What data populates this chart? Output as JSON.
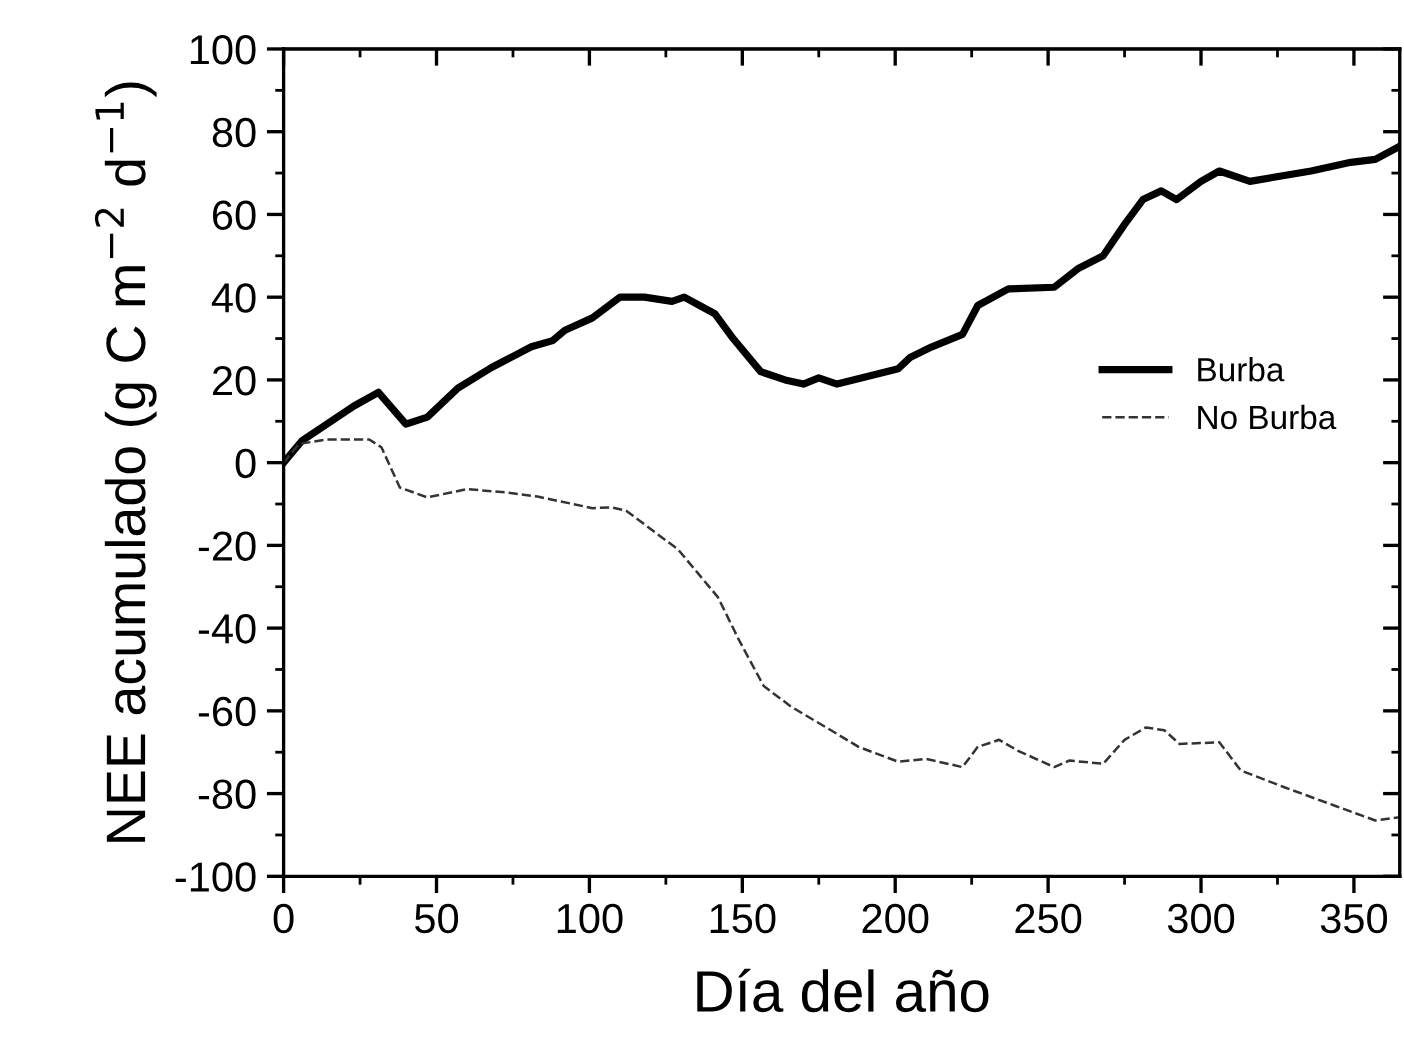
{
  "chart_data": {
    "type": "line",
    "xlabel": "Día del año",
    "ylabel": "NEE acumulado (g C m$^{−2}$ d$^{−1}$)",
    "xlim": [
      0,
      365
    ],
    "xticks": [
      0,
      50,
      100,
      150,
      200,
      250,
      300,
      350
    ],
    "ylim": [
      -100,
      100
    ],
    "yticks": [
      -100,
      -80,
      -60,
      -40,
      -20,
      0,
      20,
      40,
      60,
      80,
      100
    ],
    "grid": false,
    "legend": "right",
    "series": [
      {
        "name": "Burba",
        "color": "#000000",
        "line_style": "solid",
        "x": [
          0,
          6,
          23,
          31,
          40,
          47,
          57,
          68,
          81,
          88,
          92,
          101,
          110,
          118,
          127,
          131,
          141,
          147,
          156,
          164,
          170,
          175,
          181,
          201,
          205,
          212,
          222,
          227,
          237,
          252,
          260,
          268,
          275,
          281,
          287,
          292,
          300,
          306,
          316,
          336,
          349,
          357,
          365
        ],
        "values": [
          0,
          5.3,
          13.7,
          17,
          9.3,
          11,
          18,
          23,
          28,
          29.5,
          32,
          35,
          40,
          40,
          39,
          40,
          36,
          30,
          22,
          20,
          19,
          20.5,
          19,
          22.7,
          25.5,
          28,
          31,
          38,
          42,
          42.4,
          47,
          50,
          57.6,
          63.6,
          65.7,
          63.6,
          68,
          70.5,
          68,
          70.5,
          72.6,
          73.3,
          76.5
        ]
      },
      {
        "name": "No Burba",
        "color": "#333333",
        "line_style": "dashed",
        "x": [
          0,
          5,
          14,
          28,
          32,
          38,
          47,
          60,
          73,
          83,
          101,
          107,
          112,
          129,
          142,
          149,
          157,
          166,
          179,
          188,
          201,
          210,
          222,
          227,
          234,
          240,
          252,
          257,
          268,
          275,
          282,
          288,
          293,
          306,
          313,
          327,
          344,
          357,
          365
        ],
        "values": [
          0,
          4.5,
          5.6,
          5.6,
          3.7,
          -6,
          -8.4,
          -6.4,
          -7.2,
          -8.2,
          -11,
          -10.8,
          -11.6,
          -21,
          -32.5,
          -43,
          -54,
          -59,
          -64.7,
          -68.7,
          -72.3,
          -71.6,
          -73.6,
          -68.7,
          -67,
          -69.6,
          -73.6,
          -72,
          -72.8,
          -67,
          -64,
          -64.7,
          -68,
          -67.6,
          -74.4,
          -78.4,
          -83,
          -86.5,
          -85.7
        ]
      }
    ]
  }
}
